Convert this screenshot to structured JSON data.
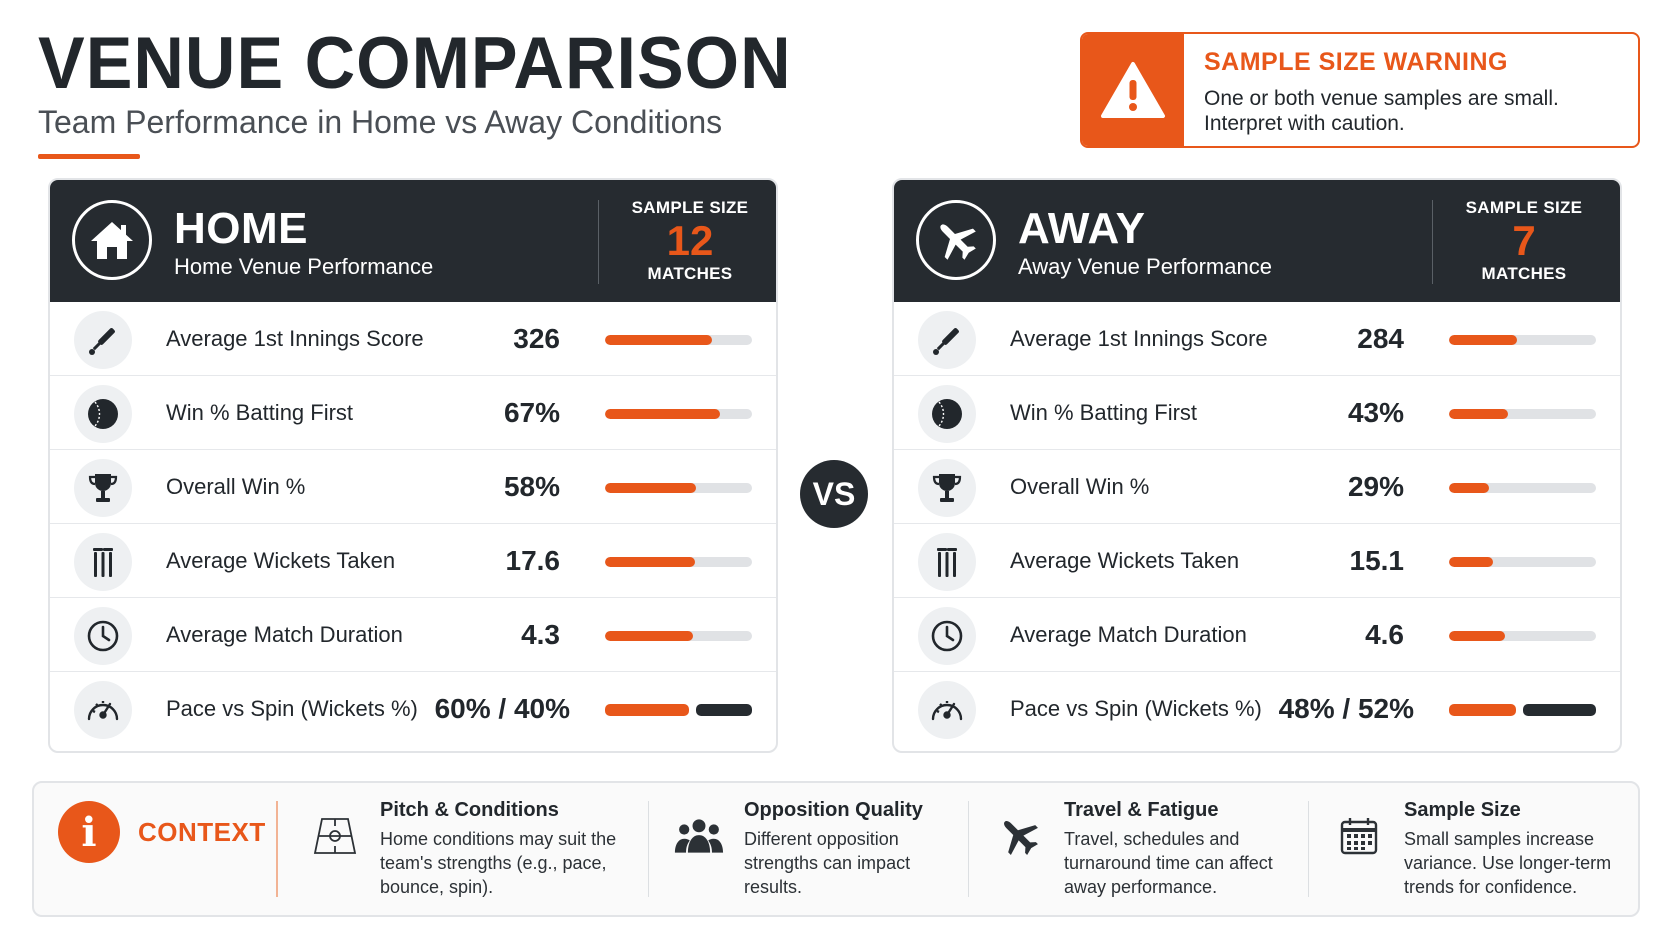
{
  "header": {
    "title": "VENUE COMPARISON",
    "subtitle": "Team Performance in Home vs Away Conditions"
  },
  "warning": {
    "icon": "warning-triangle-icon",
    "title": "SAMPLE SIZE WARNING",
    "text": "One or both venue samples are small. Interpret with caution."
  },
  "home": {
    "icon": "house-icon",
    "title": "HOME",
    "subtitle": "Home Venue Performance",
    "sample_label": "SAMPLE SIZE",
    "sample_value": "12",
    "sample_unit": "MATCHES",
    "metrics": [
      {
        "icon": "cricket-bat-icon",
        "label": "Average 1st Innings Score",
        "value": "326",
        "fill": 0.73
      },
      {
        "icon": "cricket-ball-icon",
        "label": "Win % Batting First",
        "value": "67%",
        "fill": 0.78
      },
      {
        "icon": "trophy-icon",
        "label": "Overall Win %",
        "value": "58%",
        "fill": 0.62
      },
      {
        "icon": "wickets-stumps-icon",
        "label": "Average Wickets Taken",
        "value": "17.6",
        "fill": 0.61
      },
      {
        "icon": "clock-icon",
        "label": "Average Match Duration",
        "value": "4.3",
        "fill": 0.6
      },
      {
        "icon": "speedometer-icon",
        "label": "Pace vs Spin (Wickets %)",
        "value": "60% / 40%",
        "pace": 0.6,
        "spin": 0.4
      }
    ]
  },
  "away": {
    "icon": "airplane-icon",
    "title": "AWAY",
    "subtitle": "Away Venue Performance",
    "sample_label": "SAMPLE SIZE",
    "sample_value": "7",
    "sample_unit": "MATCHES",
    "metrics": [
      {
        "icon": "cricket-bat-icon",
        "label": "Average 1st Innings Score",
        "value": "284",
        "fill": 0.46
      },
      {
        "icon": "cricket-ball-icon",
        "label": "Win % Batting First",
        "value": "43%",
        "fill": 0.4
      },
      {
        "icon": "trophy-icon",
        "label": "Overall Win %",
        "value": "29%",
        "fill": 0.27
      },
      {
        "icon": "wickets-stumps-icon",
        "label": "Average Wickets Taken",
        "value": "15.1",
        "fill": 0.3
      },
      {
        "icon": "clock-icon",
        "label": "Average Match Duration",
        "value": "4.6",
        "fill": 0.38
      },
      {
        "icon": "speedometer-icon",
        "label": "Pace vs Spin (Wickets %)",
        "value": "48% / 52%",
        "pace": 0.48,
        "spin": 0.52
      }
    ]
  },
  "vs_label": "VS",
  "context": {
    "icon": "info-icon",
    "icon_glyph": "i",
    "label": "CONTEXT",
    "items": [
      {
        "icon": "pitch-icon",
        "title": "Pitch & Conditions",
        "text": "Home conditions may suit the team's strengths (e.g., pace, bounce, spin)."
      },
      {
        "icon": "people-group-icon",
        "title": "Opposition Quality",
        "text": "Different opposition strengths can impact results."
      },
      {
        "icon": "airplane-icon",
        "title": "Travel & Fatigue",
        "text": "Travel, schedules and turnaround time can affect away performance."
      },
      {
        "icon": "calendar-icon",
        "title": "Sample Size",
        "text": "Small samples increase variance. Use longer-term trends for confidence."
      }
    ]
  },
  "colors": {
    "accent": "#e8571a",
    "dark": "#262b30",
    "track": "#e0e2e5"
  }
}
